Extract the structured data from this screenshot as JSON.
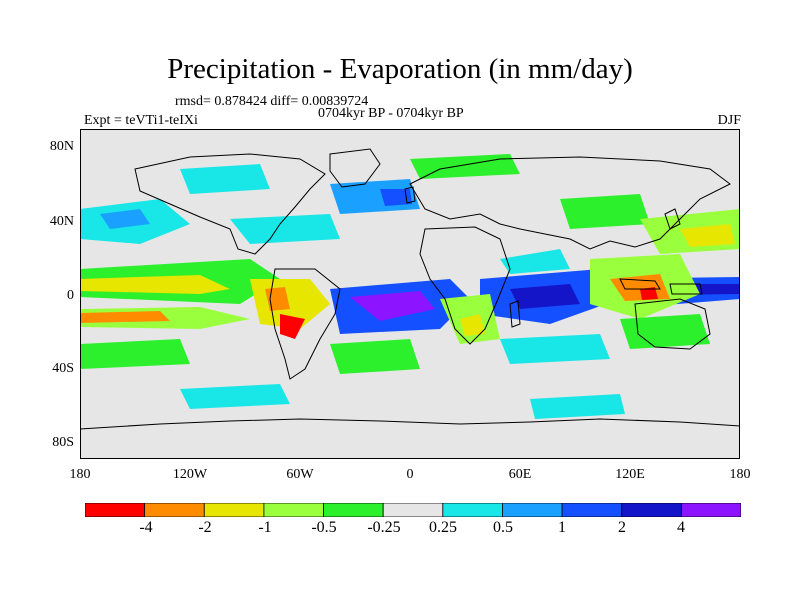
{
  "header": {
    "title": "Precipitation - Evaporation (in mm/day)",
    "stats": "rmsd= 0.878424 diff= 0.00839724",
    "period": "0704kyr BP - 0704kyr BP",
    "experiment": "Expt = teVTi1-teIXi",
    "season": "DJF"
  },
  "map": {
    "lat_labels": [
      "80N",
      "40N",
      "0",
      "40S",
      "80S"
    ],
    "lon_labels": [
      "180",
      "120W",
      "60W",
      "0",
      "60E",
      "120E",
      "180"
    ],
    "background_color": "#e6e6e6"
  },
  "colorbar": {
    "labels": [
      "-4",
      "-2",
      "-1",
      "-0.5",
      "-0.25",
      "0.25",
      "0.5",
      "1",
      "2",
      "4"
    ],
    "colors": [
      "#ff0000",
      "#ff8c00",
      "#e6e600",
      "#9aff3c",
      "#2bf02b",
      "#e6e6e6",
      "#19e6e6",
      "#1aa0ff",
      "#1450ff",
      "#1414c8",
      "#8c14ff"
    ]
  },
  "anomaly_colors": {
    "neg_strong": "#ff0000",
    "neg_med": "#ff8c00",
    "neg_light": "#e6e600",
    "neg_weak": "#9aff3c",
    "neg_faint": "#2bf02b",
    "pos_faint": "#19e6e6",
    "pos_weak": "#1aa0ff",
    "pos_med": "#1450ff",
    "pos_strong": "#1414c8",
    "pos_max": "#8c14ff"
  }
}
